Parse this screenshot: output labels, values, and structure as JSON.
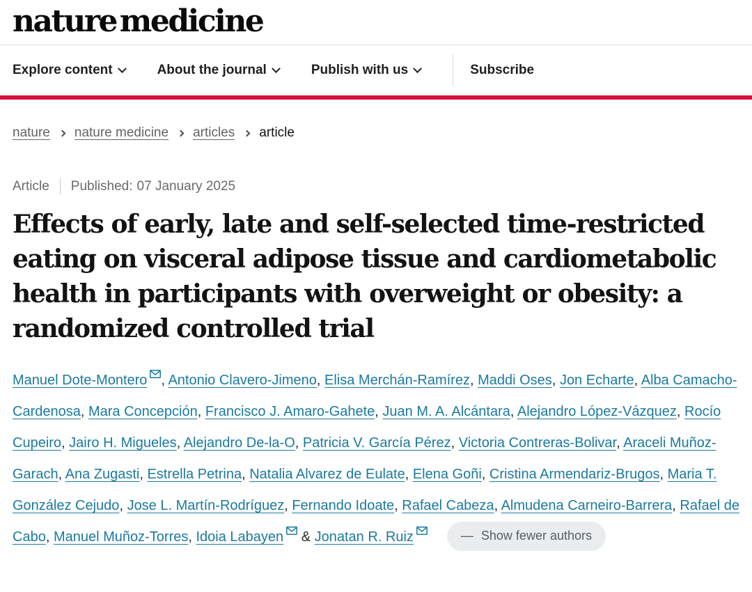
{
  "brand": {
    "logo_text": "nature medicine",
    "accent_red": "#d6123b",
    "link_blue": "#1b7a9e"
  },
  "nav": {
    "items": [
      {
        "label": "Explore content",
        "dropdown": true,
        "divider_before": false
      },
      {
        "label": "About the journal",
        "dropdown": true,
        "divider_before": false
      },
      {
        "label": "Publish with us",
        "dropdown": true,
        "divider_before": false
      },
      {
        "label": "Subscribe",
        "dropdown": false,
        "divider_before": true
      }
    ]
  },
  "breadcrumb": {
    "items": [
      {
        "label": "nature",
        "current": false
      },
      {
        "label": "nature medicine",
        "current": false
      },
      {
        "label": "articles",
        "current": false
      },
      {
        "label": "article",
        "current": true
      }
    ]
  },
  "meta": {
    "type_label": "Article",
    "published_label": "Published:",
    "published_date": "07 January 2025"
  },
  "title": {
    "lines": [
      "Effects of early, late and self-selected time-restricted",
      "eating on visceral adipose tissue and cardiometabolic",
      "health in participants with overweight or obesity: a",
      "randomized controlled trial"
    ]
  },
  "authors": {
    "list": [
      {
        "name": "Manuel Dote-Montero",
        "email": true
      },
      {
        "name": "Antonio Clavero-Jimeno",
        "email": false
      },
      {
        "name": "Elisa Merchán-Ramírez",
        "email": false
      },
      {
        "name": "Maddi Oses",
        "email": false
      },
      {
        "name": "Jon Echarte",
        "email": false
      },
      {
        "name": "Alba Camacho-Cardenosa",
        "email": false
      },
      {
        "name": "Mara Concepción",
        "email": false
      },
      {
        "name": "Francisco J. Amaro-Gahete",
        "email": false
      },
      {
        "name": "Juan M. A. Alcántara",
        "email": false
      },
      {
        "name": "Alejandro López-Vázquez",
        "email": false
      },
      {
        "name": "Rocío Cupeiro",
        "email": false
      },
      {
        "name": "Jairo H. Migueles",
        "email": false
      },
      {
        "name": "Alejandro De-la-O",
        "email": false
      },
      {
        "name": "Patricia V. García Pérez",
        "email": false
      },
      {
        "name": "Victoria Contreras-Bolivar",
        "email": false
      },
      {
        "name": "Araceli Muñoz-Garach",
        "email": false
      },
      {
        "name": "Ana Zugasti",
        "email": false
      },
      {
        "name": "Estrella Petrina",
        "email": false
      },
      {
        "name": "Natalia Alvarez de Eulate",
        "email": false
      },
      {
        "name": "Elena Goñi",
        "email": false
      },
      {
        "name": "Cristina Armendariz-Brugos",
        "email": false
      },
      {
        "name": "Maria T. González Cejudo",
        "email": false
      },
      {
        "name": "Jose L. Martín-Rodríguez",
        "email": false
      },
      {
        "name": "Fernando Idoate",
        "email": false
      },
      {
        "name": "Rafael Cabeza",
        "email": false
      },
      {
        "name": "Almudena Carneiro-Barrera",
        "email": false
      },
      {
        "name": "Rafael de Cabo",
        "email": false
      },
      {
        "name": "Manuel Muñoz-Torres",
        "email": false
      },
      {
        "name": "Idoia Labayen",
        "email": true
      },
      {
        "name": "Jonatan R. Ruiz",
        "email": true
      }
    ],
    "show_fewer_label": "Show fewer authors"
  }
}
